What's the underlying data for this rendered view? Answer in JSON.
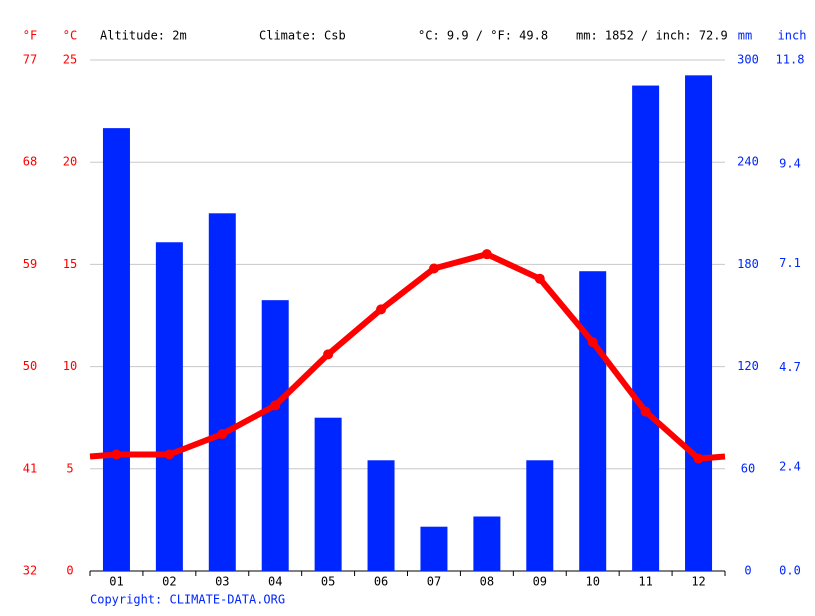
{
  "chart_data": {
    "type": "climate",
    "header": {
      "unit_f": "°F",
      "unit_c": "°C",
      "altitude": "Altitude: 2m",
      "climate": "Climate: Csb",
      "temperature": "°C: 9.9 / °F: 49.8",
      "precipitation": "mm: 1852 / inch: 72.9",
      "unit_mm": "mm",
      "unit_inch": "inch"
    },
    "footer": "Copyright: CLIMATE-DATA.ORG",
    "categories": [
      "01",
      "02",
      "03",
      "04",
      "05",
      "06",
      "07",
      "08",
      "09",
      "10",
      "11",
      "12"
    ],
    "series": [
      {
        "name": "Precipitation",
        "color": "#0026ff",
        "axis": "y2",
        "values": [
          260,
          193,
          210,
          159,
          90,
          65,
          26,
          32,
          65,
          176,
          285,
          291
        ]
      },
      {
        "name": "Temperature",
        "color": "#ff0000",
        "values": [
          5.7,
          5.7,
          6.7,
          8.1,
          10.6,
          12.8,
          14.8,
          15.5,
          14.3,
          11.2,
          7.8,
          5.5
        ]
      }
    ],
    "ylim": [
      0,
      25
    ],
    "yticks": [
      0,
      5,
      10,
      15,
      20,
      25
    ],
    "ylim_f": [
      32,
      77
    ],
    "yticks_f": [
      32,
      41,
      50,
      59,
      68,
      77
    ],
    "y2lim": [
      0,
      300
    ],
    "y2ticks": [
      0,
      60,
      120,
      180,
      240,
      300
    ],
    "y2lim_inch": [
      0,
      11.8
    ],
    "y2ticks_inch": [
      {
        "value": 0,
        "label": "0.0"
      },
      2.4,
      4.7,
      7.1,
      9.4,
      11.8
    ],
    "grid": true
  }
}
